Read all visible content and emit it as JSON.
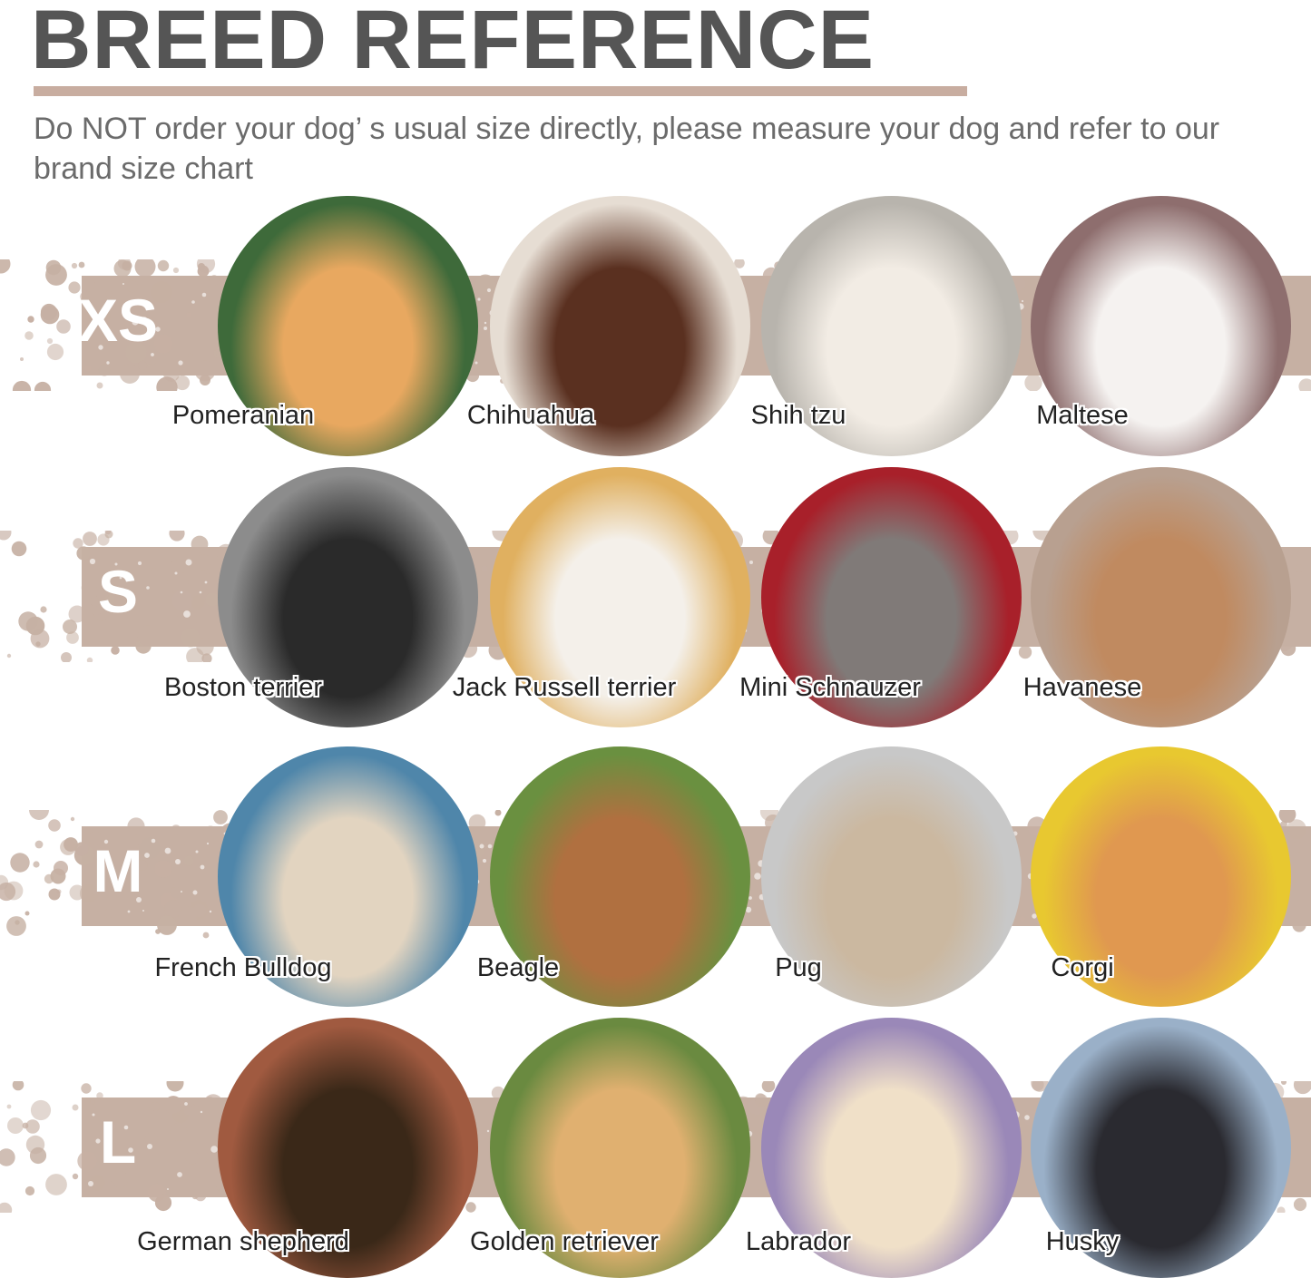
{
  "header": {
    "title": "BREED REFERENCE",
    "subtitle": "Do NOT order your dog’  s usual size directly, please measure your dog and refer to our brand size chart"
  },
  "colors": {
    "title": "#555555",
    "accent": "#c8ada0",
    "subtitle": "#6b6b6b"
  },
  "rows": [
    {
      "size": "XS",
      "breeds": [
        {
          "name": "Pomeranian",
          "bg": "#3e6a3a",
          "fg": "#e8a860"
        },
        {
          "name": "Chihuahua",
          "bg": "#e6ddd3",
          "fg": "#5a3020"
        },
        {
          "name": "Shih tzu",
          "bg": "#b8b4ad",
          "fg": "#f2ece4"
        },
        {
          "name": "Maltese",
          "bg": "#8e6e6e",
          "fg": "#f5f2f0"
        }
      ]
    },
    {
      "size": "S",
      "breeds": [
        {
          "name": "Boston terrier",
          "bg": "#8c8c8c",
          "fg": "#2a2a2a"
        },
        {
          "name": "Jack Russell terrier",
          "bg": "#e0b060",
          "fg": "#f4f0ea"
        },
        {
          "name": "Mini Schnauzer",
          "bg": "#a8202a",
          "fg": "#807a78"
        },
        {
          "name": "Havanese",
          "bg": "#b8a090",
          "fg": "#c08a60"
        }
      ]
    },
    {
      "size": "M",
      "breeds": [
        {
          "name": "French Bulldog",
          "bg": "#4f86aa",
          "fg": "#e2d4c0"
        },
        {
          "name": "Beagle",
          "bg": "#6a9040",
          "fg": "#b07040"
        },
        {
          "name": "Pug",
          "bg": "#c8c8c8",
          "fg": "#cbb8a0"
        },
        {
          "name": "Corgi",
          "bg": "#e8c830",
          "fg": "#e09850"
        }
      ]
    },
    {
      "size": "L",
      "breeds": [
        {
          "name": "German shepherd",
          "bg": "#a05a40",
          "fg": "#3a2818"
        },
        {
          "name": "Golden retriever",
          "bg": "#6a8a40",
          "fg": "#e0b070"
        },
        {
          "name": "Labrador",
          "bg": "#9a88b8",
          "fg": "#f0e0c8"
        },
        {
          "name": "Husky",
          "bg": "#9ab0c8",
          "fg": "#2a2a30"
        }
      ]
    }
  ]
}
